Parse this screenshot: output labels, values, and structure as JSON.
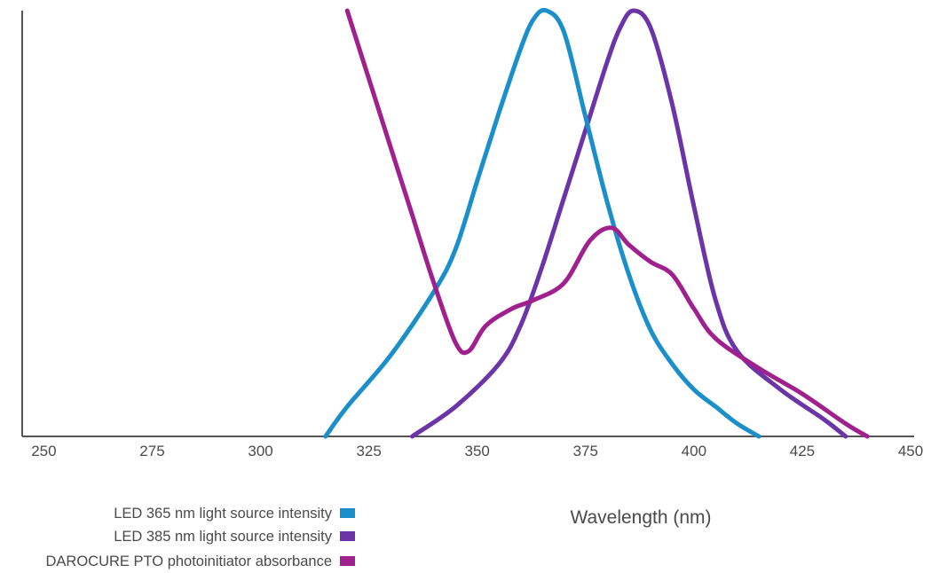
{
  "chart_data": {
    "type": "line",
    "title": "",
    "xlabel": "Wavelength (nm)",
    "ylabel": "",
    "xlim": [
      245,
      450
    ],
    "ylim": [
      0,
      1
    ],
    "x_ticks": [
      250,
      275,
      300,
      325,
      350,
      375,
      400,
      425,
      450
    ],
    "grid": false,
    "legend_position": "bottom-left",
    "series": [
      {
        "name": "LED 365 nm light source intensity",
        "color": "#1a8fc9",
        "points": [
          [
            315,
            0
          ],
          [
            320,
            0.07
          ],
          [
            330,
            0.19
          ],
          [
            340,
            0.34
          ],
          [
            345,
            0.44
          ],
          [
            350,
            0.6
          ],
          [
            355,
            0.76
          ],
          [
            360,
            0.91
          ],
          [
            363,
            0.98
          ],
          [
            366,
            1.0
          ],
          [
            370,
            0.95
          ],
          [
            375,
            0.75
          ],
          [
            380,
            0.55
          ],
          [
            385,
            0.38
          ],
          [
            390,
            0.25
          ],
          [
            395,
            0.17
          ],
          [
            400,
            0.11
          ],
          [
            405,
            0.07
          ],
          [
            410,
            0.03
          ],
          [
            415,
            0
          ]
        ]
      },
      {
        "name": "LED 385 nm light source intensity",
        "color": "#6b35a8",
        "points": [
          [
            335,
            0
          ],
          [
            345,
            0.07
          ],
          [
            355,
            0.17
          ],
          [
            360,
            0.26
          ],
          [
            365,
            0.4
          ],
          [
            370,
            0.56
          ],
          [
            375,
            0.72
          ],
          [
            380,
            0.88
          ],
          [
            383,
            0.96
          ],
          [
            386,
            1.0
          ],
          [
            390,
            0.96
          ],
          [
            395,
            0.78
          ],
          [
            400,
            0.54
          ],
          [
            405,
            0.32
          ],
          [
            410,
            0.2
          ],
          [
            420,
            0.11
          ],
          [
            430,
            0.04
          ],
          [
            435,
            0
          ]
        ]
      },
      {
        "name": "DAROCURE PTO photoinitiator absorbance",
        "color": "#a0208e",
        "points": [
          [
            320,
            1.0
          ],
          [
            325,
            0.84
          ],
          [
            330,
            0.68
          ],
          [
            335,
            0.52
          ],
          [
            340,
            0.36
          ],
          [
            345,
            0.22
          ],
          [
            348,
            0.2
          ],
          [
            352,
            0.26
          ],
          [
            358,
            0.3
          ],
          [
            363,
            0.32
          ],
          [
            370,
            0.36
          ],
          [
            376,
            0.46
          ],
          [
            381,
            0.49
          ],
          [
            385,
            0.45
          ],
          [
            390,
            0.41
          ],
          [
            395,
            0.38
          ],
          [
            400,
            0.3
          ],
          [
            405,
            0.23
          ],
          [
            415,
            0.16
          ],
          [
            425,
            0.1
          ],
          [
            435,
            0.03
          ],
          [
            440,
            0
          ]
        ]
      }
    ]
  }
}
